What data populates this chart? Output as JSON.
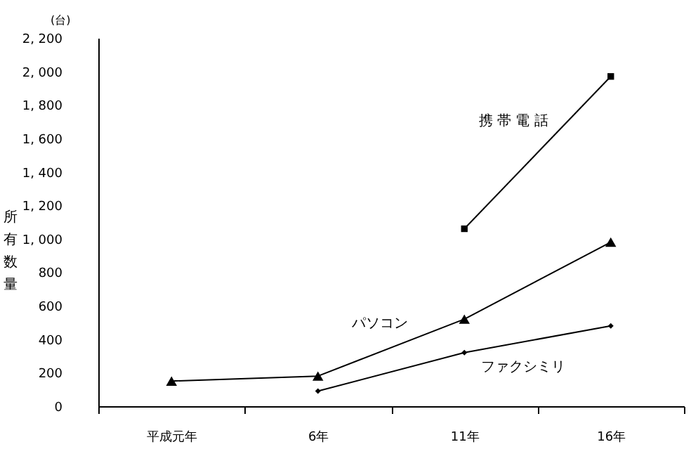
{
  "chart_data": {
    "type": "line",
    "ylabel": "所有数量",
    "annotations": [
      "(台)"
    ],
    "categories": [
      "平成元年",
      "6年",
      "11年",
      "16年"
    ],
    "ylim": [
      0,
      2200
    ],
    "yticks": [
      {
        "value": 0,
        "label": "0"
      },
      {
        "value": 200,
        "label": "200"
      },
      {
        "value": 400,
        "label": "400"
      },
      {
        "value": 600,
        "label": "600"
      },
      {
        "value": 800,
        "label": "800"
      },
      {
        "value": 1000,
        "label": "1, 000"
      },
      {
        "value": 1200,
        "label": "1, 200"
      },
      {
        "value": 1400,
        "label": "1, 400"
      },
      {
        "value": 1600,
        "label": "1, 600"
      },
      {
        "value": 1800,
        "label": "1, 800"
      },
      {
        "value": 2000,
        "label": "2, 000"
      },
      {
        "value": 2200,
        "label": "2, 200"
      }
    ],
    "grid": false,
    "series": [
      {
        "name": "携 帯 電 話",
        "color": "#000000",
        "marker": "square",
        "values": [
          null,
          null,
          1060,
          1970
        ]
      },
      {
        "name": "パソコン",
        "color": "#000000",
        "marker": "triangle",
        "values": [
          150,
          180,
          520,
          980
        ]
      },
      {
        "name": "ファクシミリ",
        "color": "#000000",
        "marker": "diamond",
        "values": [
          null,
          90,
          320,
          480
        ]
      }
    ]
  }
}
